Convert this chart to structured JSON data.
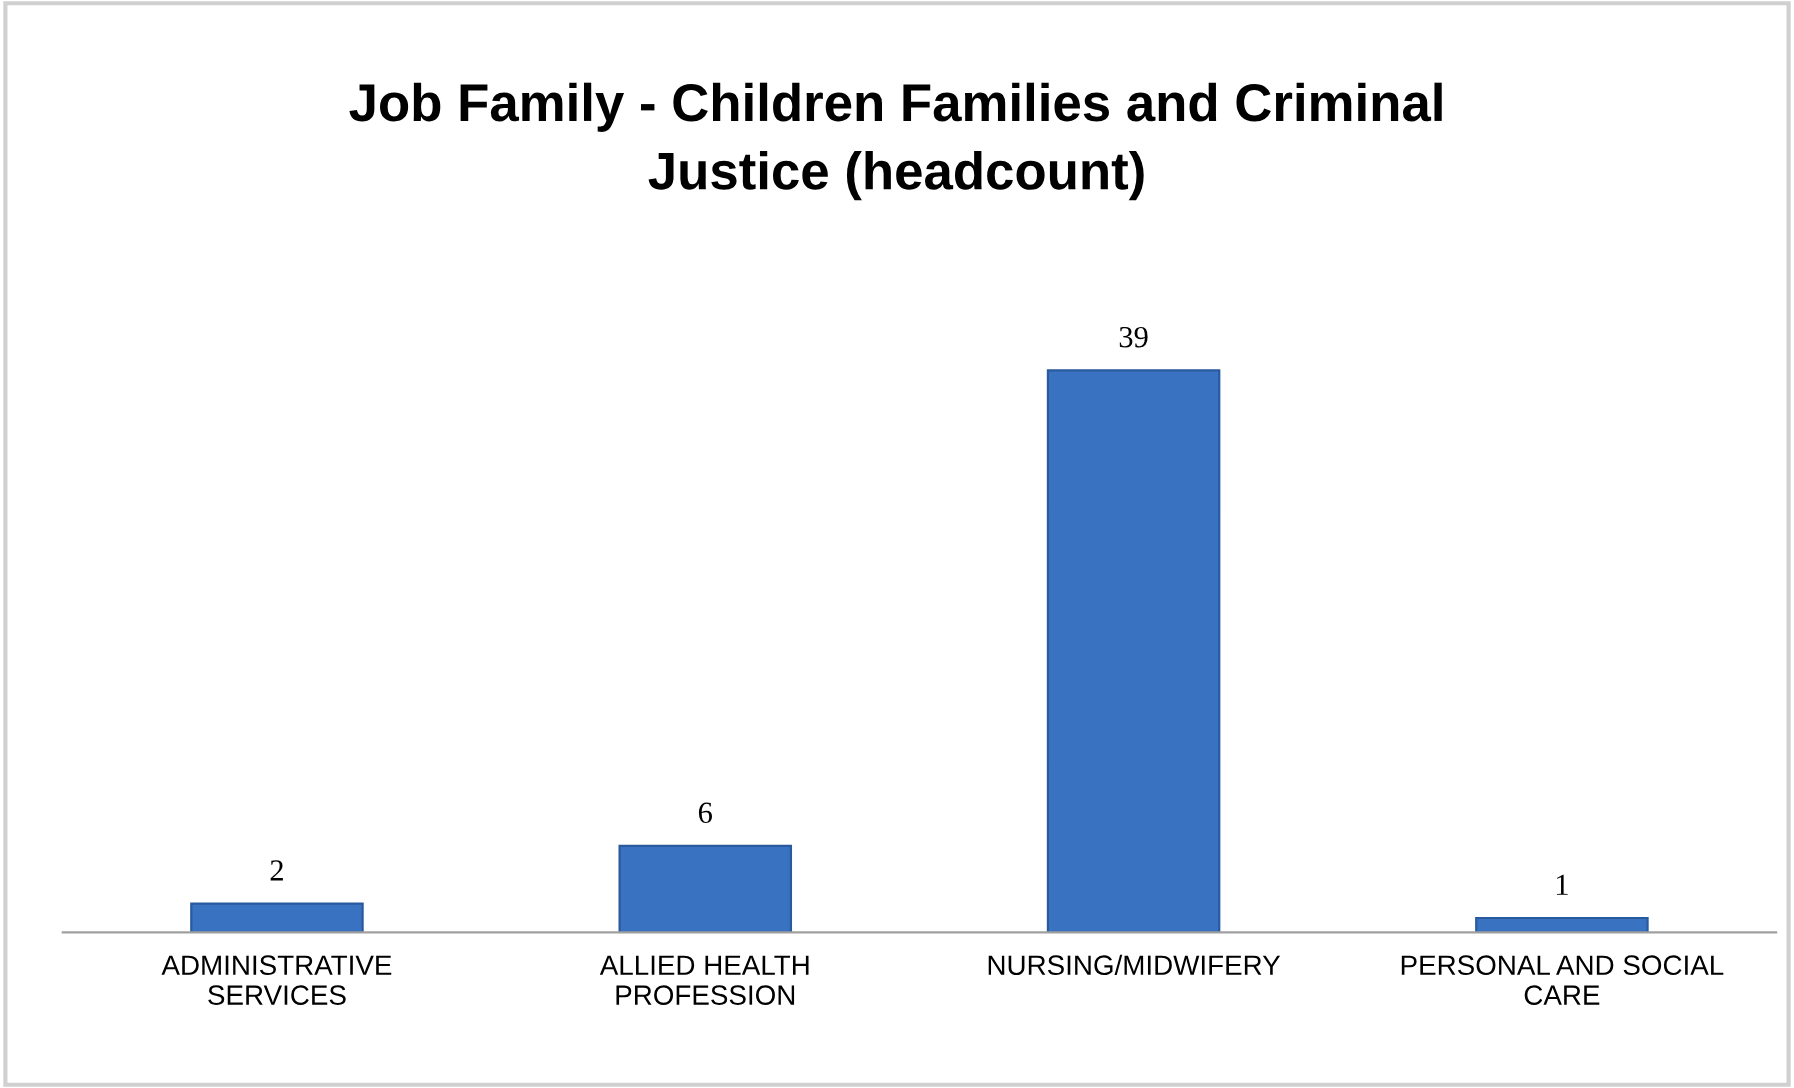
{
  "chart_data": {
    "type": "bar",
    "title": "Job Family - Children Families and Criminal\nJustice (headcount)",
    "categories": [
      "ADMINISTRATIVE\nSERVICES",
      "ALLIED HEALTH\nPROFESSION",
      "NURSING/MIDWIFERY",
      "PERSONAL AND SOCIAL\nCARE"
    ],
    "values": [
      2,
      6,
      39,
      1
    ],
    "color": "#3a72c2",
    "data_labels": true,
    "grid": false,
    "legend": false
  }
}
